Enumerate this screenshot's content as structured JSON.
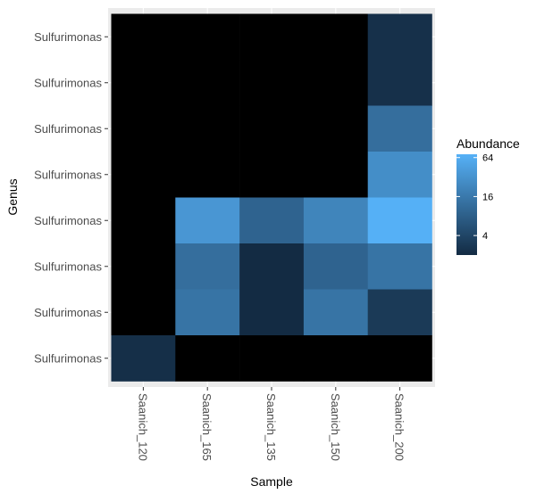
{
  "chart_data": {
    "type": "heatmap",
    "title": "",
    "xlabel": "Sample",
    "ylabel": "Genus",
    "x": [
      "Saanich_120",
      "Saanich_165",
      "Saanich_135",
      "Saanich_150",
      "Saanich_200"
    ],
    "y": [
      "Sulfurimonas",
      "Sulfurimonas",
      "Sulfurimonas",
      "Sulfurimonas",
      "Sulfurimonas",
      "Sulfurimonas",
      "Sulfurimonas",
      "Sulfurimonas"
    ],
    "values": [
      [
        null,
        null,
        null,
        null,
        2.3
      ],
      [
        null,
        null,
        null,
        null,
        2.3
      ],
      [
        null,
        null,
        null,
        null,
        12
      ],
      [
        null,
        null,
        null,
        null,
        28
      ],
      [
        null,
        35,
        9,
        22,
        70
      ],
      [
        null,
        12,
        2,
        9,
        14
      ],
      [
        null,
        14,
        2,
        14,
        3
      ],
      [
        2.2,
        null,
        null,
        null,
        null
      ]
    ],
    "legend": {
      "title": "Abundance",
      "scale": "log",
      "breaks": [
        4,
        16,
        64
      ],
      "break_labels": [
        "4",
        "16",
        "64"
      ],
      "range": [
        2,
        72
      ],
      "position": "right",
      "colors": {
        "low": "#132B43",
        "high": "#56B1F7"
      }
    },
    "na_color": "#000000",
    "grid": true,
    "panel_background": "#EBEBEB"
  }
}
